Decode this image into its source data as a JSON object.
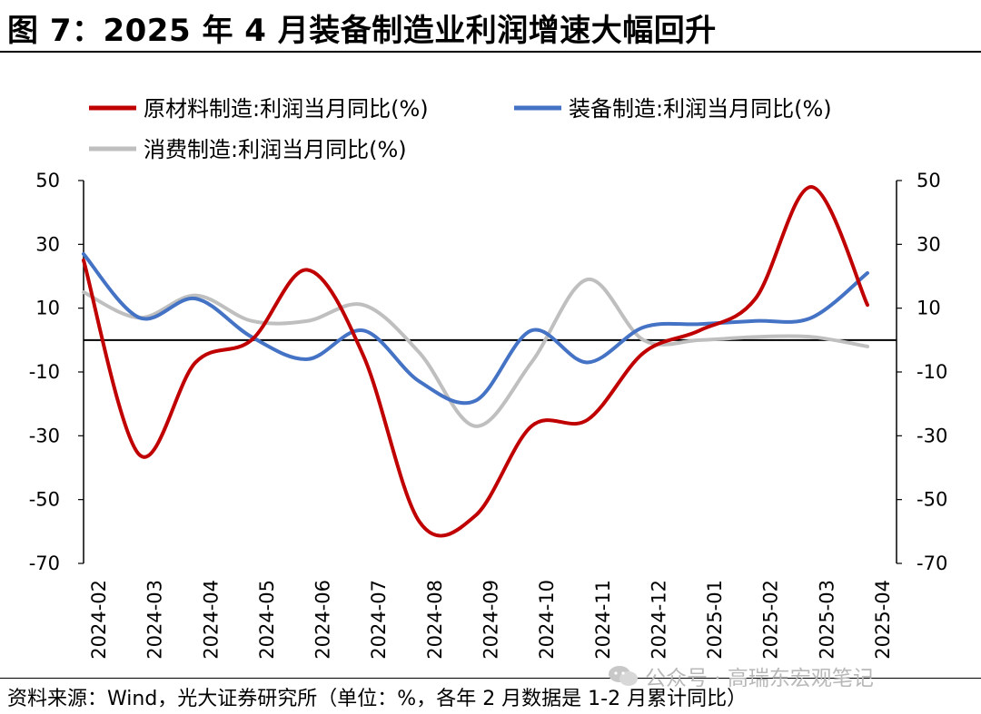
{
  "title": "图 7：2025 年 4 月装备制造业利润增速大幅回升",
  "footer": "资料来源：Wind，光大证券研究所（单位：%，各年 2 月数据是 1-2 月累计同比）",
  "watermark": "公众号 · 高瑞东宏观笔记",
  "chart_data": {
    "type": "line",
    "categories": [
      "2024-02",
      "2024-03",
      "2024-04",
      "2024-05",
      "2024-06",
      "2024-07",
      "2024-08",
      "2024-09",
      "2024-10",
      "2024-11",
      "2024-12",
      "2025-01",
      "2025-02",
      "2025-03",
      "2025-04"
    ],
    "series": [
      {
        "name": "原材料制造:利润当月同比(%)",
        "color": "#c00000",
        "values": [
          25,
          -36,
          -7,
          0,
          22,
          -5,
          -57,
          -55,
          -27,
          -25,
          -4,
          3,
          13,
          48,
          11
        ]
      },
      {
        "name": "装备制造:利润当月同比(%)",
        "color": "#4472c4",
        "values": [
          27,
          7,
          13,
          1,
          -6,
          3,
          -13,
          -19,
          3,
          -7,
          4,
          5,
          6,
          7,
          21
        ]
      },
      {
        "name": "消费制造:利润当月同比(%)",
        "color": "#bfbfbf",
        "values": [
          15,
          7,
          14,
          6,
          6,
          11,
          -4,
          -27,
          -7,
          19,
          0,
          0,
          1,
          1,
          -2
        ]
      }
    ],
    "ylim": [
      -70,
      50
    ],
    "yticks": [
      50,
      30,
      10,
      -10,
      -30,
      -50,
      -70
    ],
    "y2ticks": [
      50,
      30,
      10,
      -10,
      -30,
      -50,
      -70
    ],
    "legend_position": "top",
    "grid": false
  }
}
